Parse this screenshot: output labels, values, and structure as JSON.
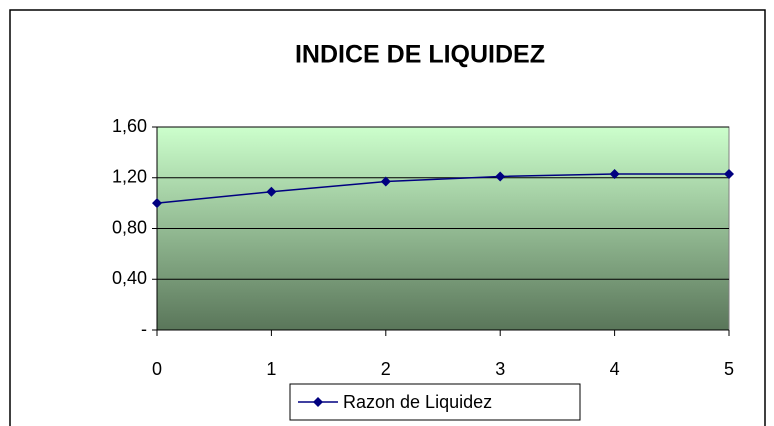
{
  "chart_data": {
    "type": "line",
    "title": "INDICE DE LIQUIDEZ",
    "x": [
      0,
      1,
      2,
      3,
      4,
      5
    ],
    "series": [
      {
        "name": "Razon de Liquidez",
        "color": "#000080",
        "values": [
          1.0,
          1.09,
          1.17,
          1.21,
          1.23,
          1.23
        ]
      }
    ],
    "xlim": [
      0,
      5
    ],
    "xticks": [
      0,
      1,
      2,
      3,
      4,
      5
    ],
    "ylim": [
      0,
      1.6
    ],
    "yticks": [
      {
        "value": 0,
        "label": "-"
      },
      {
        "value": 0.4,
        "label": "0,40"
      },
      {
        "value": 0.8,
        "label": "0,80"
      },
      {
        "value": 1.2,
        "label": "1,20"
      },
      {
        "value": 1.6,
        "label": "1,60"
      }
    ],
    "grid": true,
    "legend": "bottom"
  }
}
